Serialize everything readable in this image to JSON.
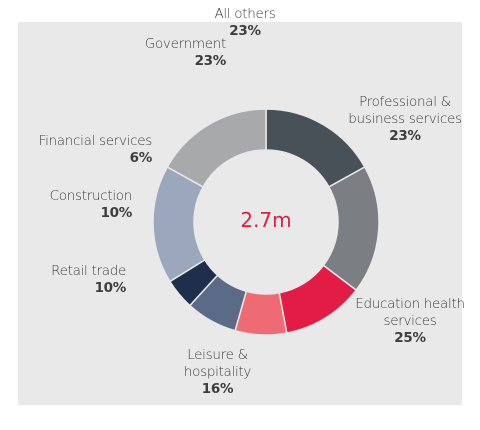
{
  "chart_data": {
    "type": "donut",
    "center_label": "2.7m",
    "categories": [
      "Professional & business services",
      "Education health services",
      "Leisure & hospitality",
      "Retail trade",
      "Construction",
      "Financial services",
      "Government",
      "All others"
    ],
    "values": [
      23,
      25,
      16,
      10,
      10,
      6,
      23,
      23
    ],
    "value_labels": [
      "23%",
      "25%",
      "16%",
      "10%",
      "10%",
      "6%",
      "23%",
      "23%"
    ],
    "colors": [
      "#485058",
      "#7b7e83",
      "#e31c45",
      "#ef6b74",
      "#5b6a86",
      "#1f2f4b",
      "#9ba7bc",
      "#a8a9ab"
    ]
  }
}
